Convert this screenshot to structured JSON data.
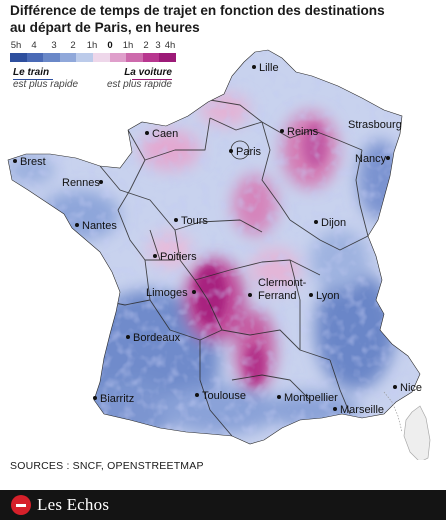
{
  "title": {
    "line1": "Différence de temps de trajet en fonction des destinations",
    "line2": "au départ de Paris, en heures"
  },
  "legend": {
    "ticks": [
      "5h",
      "4",
      "3",
      "2",
      "1h",
      "0",
      "1h",
      "2",
      "3",
      "4h"
    ],
    "colors": [
      "#2e4f9e",
      "#4a6ab6",
      "#6a88c8",
      "#90a8da",
      "#bccbea",
      "#eed7ea",
      "#df9fcb",
      "#cd6aac",
      "#b8368f",
      "#9c1a77"
    ],
    "left_title": "Le train",
    "left_sub": "est plus rapide",
    "right_title": "La voiture",
    "right_sub": "est plus rapide"
  },
  "cities": [
    {
      "name": "Lille",
      "dot_side": "left"
    },
    {
      "name": "Caen",
      "dot_side": "left"
    },
    {
      "name": "Reims",
      "dot_side": "left"
    },
    {
      "name": "Strasbourg",
      "dot_side": "none"
    },
    {
      "name": "Paris",
      "dot_side": "left"
    },
    {
      "name": "Brest",
      "dot_side": "left"
    },
    {
      "name": "Nancy",
      "dot_side": "right"
    },
    {
      "name": "Rennes",
      "dot_side": "right"
    },
    {
      "name": "Tours",
      "dot_side": "left"
    },
    {
      "name": "Dijon",
      "dot_side": "left"
    },
    {
      "name": "Nantes",
      "dot_side": "left"
    },
    {
      "name": "Poitiers",
      "dot_side": "left"
    },
    {
      "name": "Clermont-",
      "dot_side": "none"
    },
    {
      "name": "Ferrand",
      "dot_side": "left"
    },
    {
      "name": "Limoges",
      "dot_side": "right"
    },
    {
      "name": "Lyon",
      "dot_side": "left"
    },
    {
      "name": "Bordeaux",
      "dot_side": "left"
    },
    {
      "name": "Nice",
      "dot_side": "left"
    },
    {
      "name": "Biarritz",
      "dot_side": "left"
    },
    {
      "name": "Toulouse",
      "dot_side": "left"
    },
    {
      "name": "Montpellier",
      "dot_side": "left"
    },
    {
      "name": "Marseille",
      "dot_side": "left"
    }
  ],
  "source": "SOURCES : SNCF, OPENSTREETMAP",
  "brand": "Les Echos"
}
